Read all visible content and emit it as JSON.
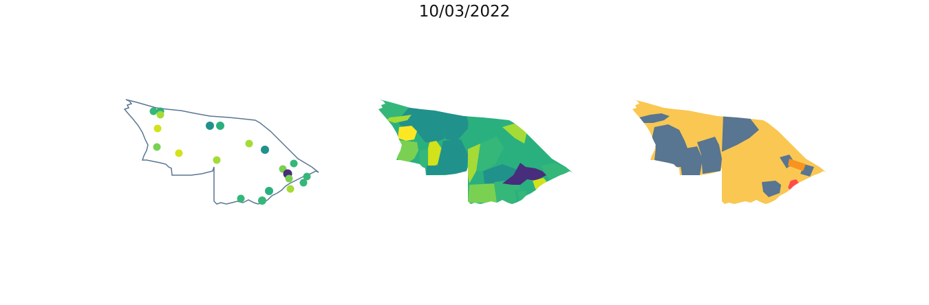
{
  "title": "10/03/2022",
  "colors": {
    "outline": "#5a7890",
    "viridis": [
      "#440154",
      "#472d7b",
      "#21918c",
      "#2ab07f",
      "#35b779",
      "#7ad151",
      "#a5db36",
      "#d2e21b",
      "#fde725"
    ],
    "risk": {
      "yellow": "#f9c752",
      "slate": "#587591",
      "orange": "#f7931e",
      "red": "#ff4b4b"
    }
  },
  "panels": [
    {
      "name": "points-map",
      "type": "dot map"
    },
    {
      "name": "choropleth-viridis",
      "type": "choropleth"
    },
    {
      "name": "choropleth-risk",
      "type": "choropleth"
    }
  ]
}
